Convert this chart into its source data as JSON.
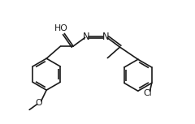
{
  "bg_color": "#ffffff",
  "line_color": "#1a1a1a",
  "lw": 1.2,
  "fs": 6.8,
  "fig_w": 2.4,
  "fig_h": 1.53,
  "dpi": 100,
  "xlim": [
    -0.5,
    9.5
  ],
  "ylim": [
    -4.8,
    2.2
  ]
}
